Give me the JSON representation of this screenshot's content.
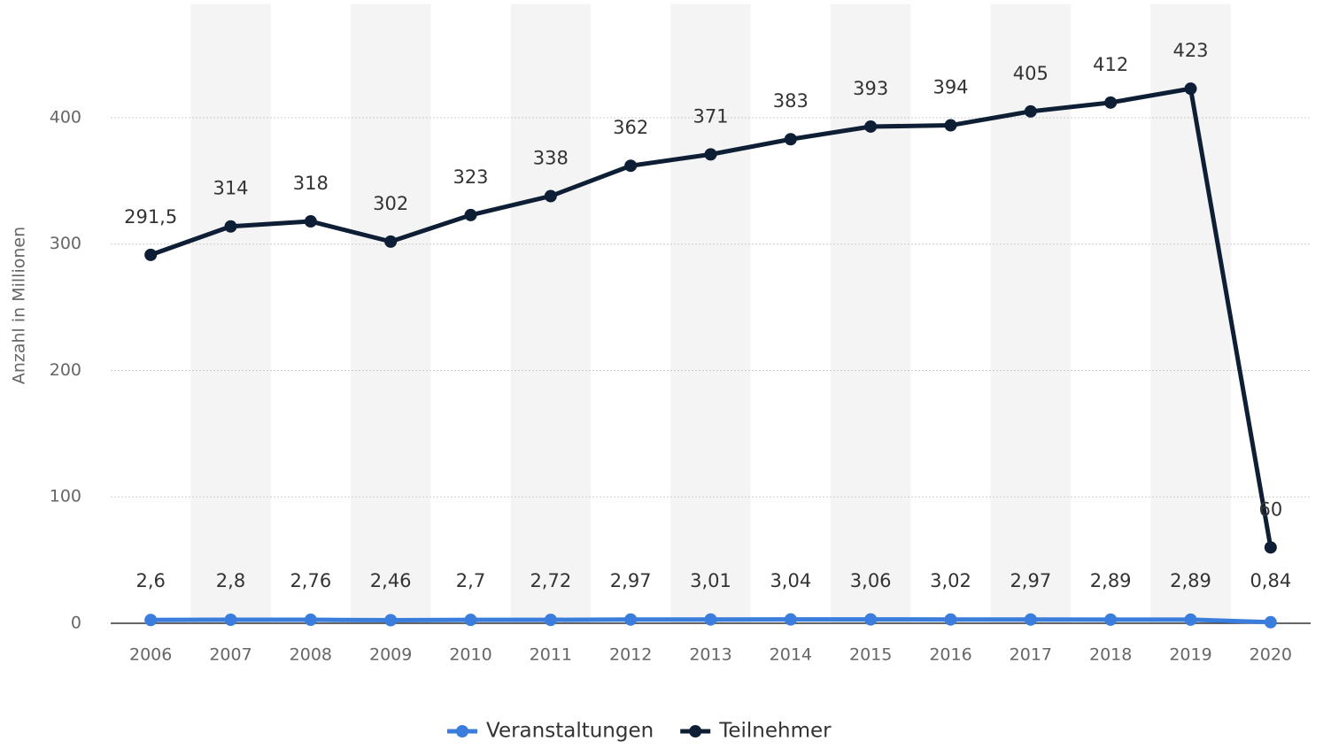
{
  "chart_data": {
    "type": "line",
    "y_label": "Anzahl in Millionen",
    "categories": [
      "2006",
      "2007",
      "2008",
      "2009",
      "2010",
      "2011",
      "2012",
      "2013",
      "2014",
      "2015",
      "2016",
      "2017",
      "2018",
      "2019",
      "2020"
    ],
    "series": [
      {
        "name": "Veranstaltungen",
        "color": "#3b7ddd",
        "values": [
          2.6,
          2.8,
          2.76,
          2.46,
          2.7,
          2.72,
          2.97,
          3.01,
          3.04,
          3.06,
          3.02,
          2.97,
          2.89,
          2.89,
          0.84
        ],
        "value_labels": [
          "2,6",
          "2,8",
          "2,76",
          "2,46",
          "2,7",
          "2,72",
          "2,97",
          "3,01",
          "3,04",
          "3,06",
          "3,02",
          "2,97",
          "2,89",
          "2,89",
          "0,84"
        ]
      },
      {
        "name": "Teilnehmer",
        "color": "#0e1f35",
        "values": [
          291.5,
          314,
          318,
          302,
          323,
          338,
          362,
          371,
          383,
          393,
          394,
          405,
          412,
          423,
          60
        ],
        "value_labels": [
          "291,5",
          "314",
          "318",
          "302",
          "323",
          "338",
          "362",
          "371",
          "383",
          "393",
          "394",
          "405",
          "412",
          "423",
          "60"
        ]
      }
    ],
    "ylim": [
      0,
      490
    ],
    "yticks": [
      0,
      100,
      200,
      300,
      400
    ],
    "grid": true,
    "legend": "bottom"
  }
}
